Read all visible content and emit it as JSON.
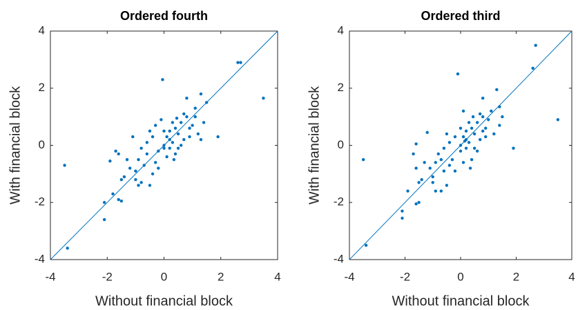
{
  "chart_data": [
    {
      "type": "scatter",
      "title": "Ordered fourth",
      "x_label": "Without financial block",
      "y_label": "With financial block",
      "xlim": [
        -4,
        4
      ],
      "ylim": [
        -4,
        4
      ],
      "xticks": [
        -4,
        -2,
        0,
        2,
        4
      ],
      "yticks": [
        -4,
        -2,
        0,
        2,
        4
      ],
      "color": "#0072BD",
      "reference_line": {
        "x": [
          -4,
          4
        ],
        "y": [
          -4,
          4
        ]
      },
      "x": [
        -3.5,
        -3.4,
        2.6,
        2.7,
        3.5,
        -0.05,
        1.9,
        -2.1,
        -2.1,
        -1.8,
        -1.6,
        -1.5,
        -1.9,
        -1.7,
        -1.6,
        -1.1,
        1.3,
        1.5,
        0.8,
        1.1,
        -1.5,
        -1.4,
        -1.0,
        -0.9,
        -0.8,
        -0.5,
        -0.7,
        -0.6,
        -0.3,
        -0.2,
        0,
        0.1,
        0.2,
        0.3,
        0.4,
        0.5,
        0.6,
        0.7,
        0.8,
        0.9,
        1.0,
        1.2,
        1.3,
        -0.4,
        -0.3,
        -0.1,
        0,
        0.2,
        0.4,
        0.5,
        0.6,
        -0.8,
        -0.9,
        -1.2,
        -1.0,
        -0.6,
        -0.2,
        0.1,
        0.3,
        0.7,
        0.9,
        1.1,
        -0.5,
        0.0,
        0.2,
        0.45,
        -1.3,
        -0.4,
        0.35,
        1.4
      ],
      "values": [
        -0.7,
        -3.6,
        2.9,
        2.9,
        1.65,
        2.3,
        0.3,
        -2.0,
        -2.6,
        -1.7,
        -1.9,
        -1.95,
        -0.55,
        -0.2,
        -0.3,
        0.3,
        1.8,
        1.5,
        1.65,
        1.0,
        -1.2,
        -1.1,
        -0.9,
        -1.4,
        -1.3,
        -1.4,
        -0.7,
        -0.3,
        -0.6,
        -0.2,
        0,
        0.3,
        0.5,
        0.1,
        0.6,
        0.4,
        0.8,
        0.2,
        1.0,
        0.6,
        0.7,
        0.4,
        0.2,
        0.3,
        0.7,
        0.9,
        0.5,
        -0.1,
        -0.3,
        -0.1,
        0.0,
        -0.1,
        -0.5,
        -0.8,
        -1.2,
        0.1,
        -0.8,
        -0.4,
        0.8,
        1.1,
        0.3,
        1.3,
        0.5,
        -0.1,
        0.2,
        0.95,
        -0.5,
        -1.0,
        -0.5,
        0.8
      ]
    },
    {
      "type": "scatter",
      "title": "Ordered third",
      "x_label": "Without financial block",
      "y_label": "With financial block",
      "xlim": [
        -4,
        4
      ],
      "ylim": [
        -4,
        4
      ],
      "xticks": [
        -4,
        -2,
        0,
        2,
        4
      ],
      "yticks": [
        -4,
        -2,
        0,
        2,
        4
      ],
      "color": "#0072BD",
      "reference_line": {
        "x": [
          -4,
          4
        ],
        "y": [
          -4,
          4
        ]
      },
      "x": [
        -3.5,
        -3.4,
        2.7,
        2.6,
        3.5,
        -0.1,
        1.9,
        -2.1,
        -2.1,
        -1.9,
        -1.6,
        -1.5,
        -1.6,
        -1.7,
        -1.6,
        -1.2,
        1.3,
        1.5,
        1.4,
        0.8,
        -1.5,
        -1.4,
        -1.0,
        -0.9,
        -0.7,
        -0.5,
        -0.6,
        -0.3,
        0,
        0.1,
        0.2,
        0.3,
        0.4,
        0.5,
        0.6,
        0.7,
        0.8,
        0.9,
        1.0,
        1.2,
        -0.4,
        -0.2,
        0.1,
        0,
        0.2,
        0.4,
        0.5,
        0.6,
        -0.8,
        -0.9,
        -1.1,
        -1.0,
        -0.6,
        -0.2,
        0.1,
        0.3,
        0.7,
        0.9,
        1.1,
        -0.5,
        0.0,
        0.2,
        0.45,
        -1.3,
        -0.4,
        0.35,
        1.4,
        -0.7,
        0.8,
        0.15
      ],
      "values": [
        -0.5,
        -3.5,
        3.5,
        2.7,
        0.9,
        2.5,
        -0.1,
        -2.3,
        -2.55,
        -1.6,
        -2.05,
        -2.0,
        0.05,
        -0.3,
        -0.8,
        0.45,
        1.95,
        1.0,
        1.35,
        1.65,
        -1.3,
        -1.2,
        -1.1,
        -1.6,
        -1.6,
        -1.4,
        -0.9,
        -0.5,
        0,
        0.3,
        0.5,
        0.1,
        0.6,
        0.4,
        0.8,
        0.2,
        1.0,
        0.6,
        0.9,
        0.4,
        0.1,
        0.3,
        1.2,
        0.6,
        -0.1,
        -0.5,
        -0.1,
        -0.2,
        -0.3,
        -0.6,
        -0.8,
        -1.3,
        -0.1,
        -0.9,
        -0.6,
        0.8,
        1.1,
        0.3,
        1.2,
        0.4,
        -0.2,
        0.2,
        1.0,
        -0.6,
        -0.7,
        -0.8,
        0.7,
        -0.5,
        0.5,
        0.15
      ]
    }
  ]
}
